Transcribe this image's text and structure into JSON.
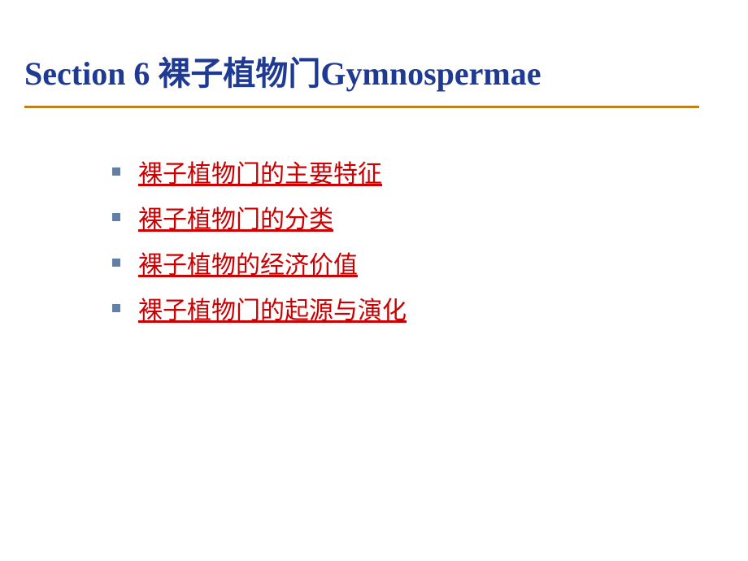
{
  "slide": {
    "title": "Section 6 裸子植物门Gymnospermae",
    "title_color": "#1f3a93",
    "title_fontsize": 40,
    "underline_color": "#c08020",
    "bullet_color": "#6080a8",
    "link_color": "#cc0000",
    "link_fontsize": 30,
    "background_color": "#ffffff",
    "items": [
      {
        "label": "裸子植物门的主要特征"
      },
      {
        "label": "裸子植物门的分类"
      },
      {
        "label": "裸子植物的经济价值"
      },
      {
        "label": "裸子植物门的起源与演化"
      }
    ]
  }
}
